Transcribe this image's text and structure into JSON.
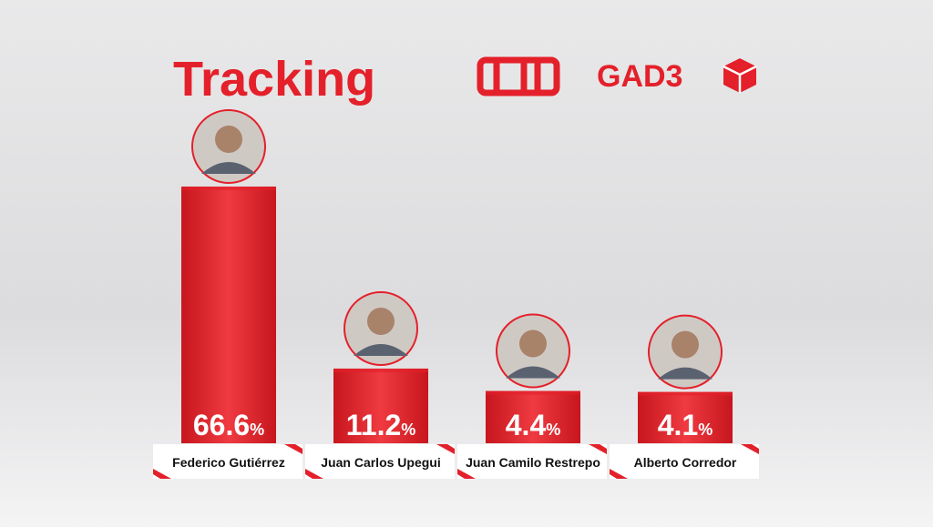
{
  "chart_data": {
    "type": "bar",
    "title": "Tracking",
    "brand": "GAD3",
    "categories": [
      "Federico Gutiérrez",
      "Juan Carlos Upegui",
      "Juan Camilo Restrepo",
      "Alberto Corredor"
    ],
    "values": [
      66.6,
      11.2,
      4.4,
      4.1
    ],
    "value_labels": [
      "66.6%",
      "11.2%",
      "4.4%",
      "4.1%"
    ],
    "color": "#e4202a"
  }
}
